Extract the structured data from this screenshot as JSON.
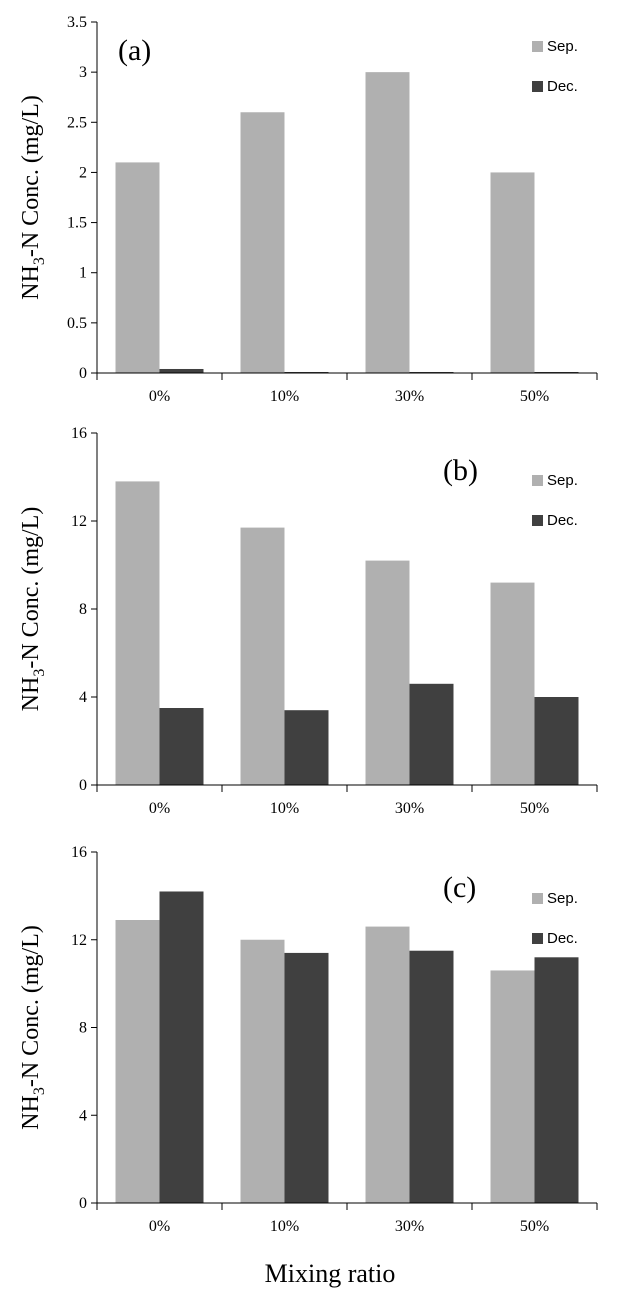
{
  "chart_data": [
    {
      "type": "bar",
      "panel_label": "(a)",
      "categories": [
        "0%",
        "10%",
        "30%",
        "50%"
      ],
      "series": [
        {
          "name": "Sep.",
          "values": [
            2.1,
            2.6,
            3.0,
            2.0
          ],
          "color": "#b0b0b0"
        },
        {
          "name": "Dec.",
          "values": [
            0.04,
            0.01,
            0.01,
            0.01
          ],
          "color": "#404040"
        }
      ],
      "ylabel_parts": [
        "NH",
        "3",
        "-N Conc. (mg/L)"
      ],
      "ylim": [
        0,
        3.5
      ],
      "yticks": [
        0,
        0.5,
        1,
        1.5,
        2,
        2.5,
        3,
        3.5
      ],
      "ytick_labels": [
        "0",
        "0.5",
        "1",
        "1.5",
        "2",
        "2.5",
        "3",
        "3.5"
      ],
      "legend_position": "top-right"
    },
    {
      "type": "bar",
      "panel_label": "(b)",
      "categories": [
        "0%",
        "10%",
        "30%",
        "50%"
      ],
      "series": [
        {
          "name": "Sep.",
          "values": [
            13.8,
            11.7,
            10.2,
            9.2
          ],
          "color": "#b0b0b0"
        },
        {
          "name": "Dec.",
          "values": [
            3.5,
            3.4,
            4.6,
            4.0
          ],
          "color": "#404040"
        }
      ],
      "ylabel_parts": [
        "NH",
        "3",
        "-N Conc. (mg/L)"
      ],
      "ylim": [
        0,
        16
      ],
      "yticks": [
        0,
        4,
        8,
        12,
        16
      ],
      "ytick_labels": [
        "0",
        "4",
        "8",
        "12",
        "16"
      ],
      "legend_position": "top-right"
    },
    {
      "type": "bar",
      "panel_label": "(c)",
      "categories": [
        "0%",
        "10%",
        "30%",
        "50%"
      ],
      "series": [
        {
          "name": "Sep.",
          "values": [
            12.9,
            12.0,
            12.6,
            10.6
          ],
          "color": "#b0b0b0"
        },
        {
          "name": "Dec.",
          "values": [
            14.2,
            11.4,
            11.5,
            11.2
          ],
          "color": "#404040"
        }
      ],
      "ylabel_parts": [
        "NH",
        "3",
        "-N Conc. (mg/L)"
      ],
      "ylim": [
        0,
        16
      ],
      "yticks": [
        0,
        4,
        8,
        12,
        16
      ],
      "ytick_labels": [
        "0",
        "4",
        "8",
        "12",
        "16"
      ],
      "legend_position": "top-right"
    }
  ],
  "xlabel": "Mixing ratio"
}
